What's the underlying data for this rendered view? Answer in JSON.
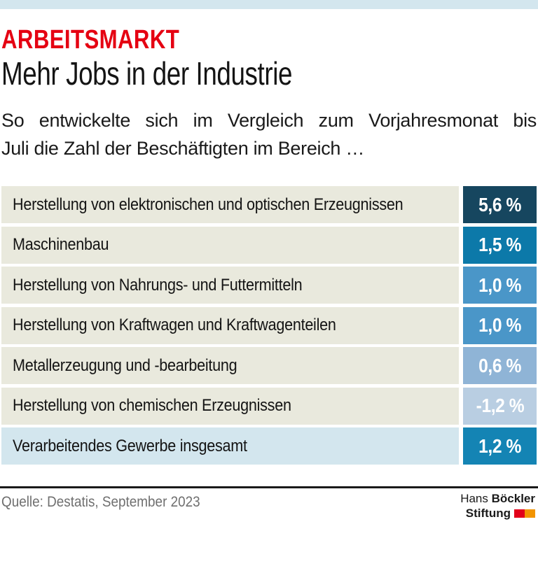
{
  "header": {
    "kicker": "ARBEITSMARKT",
    "kicker_color": "#e50012",
    "title": "Mehr Jobs in der Industrie",
    "subtitle_line1": "So entwickelte sich im Vergleich zum Vorjahresmonat bis",
    "subtitle_line2": "Juli die Zahl der Beschäftigten im Bereich …",
    "topbar_color": "#d3e6ee"
  },
  "chart_data": {
    "type": "bar",
    "orientation": "horizontal",
    "title": "Mehr Jobs in der Industrie",
    "subtitle": "So entwickelte sich im Vergleich zum Vorjahresmonat bis Juli die Zahl der Beschäftigten im Bereich …",
    "unit": "%",
    "categories": [
      "Herstellung von elektronischen und optischen Erzeugnissen",
      "Maschinenbau",
      "Herstellung von Nahrungs- und Futtermitteln",
      "Herstellung von Kraftwagen und Kraftwagenteilen",
      "Metallerzeugung und -bearbeitung",
      "Herstellung von chemischen Erzeugnissen",
      "Verarbeitendes Gewerbe insgesamt"
    ],
    "values": [
      5.6,
      1.5,
      1.0,
      1.0,
      0.6,
      -1.2,
      1.2
    ],
    "value_labels": [
      "5,6 %",
      "1,5 %",
      "1,0 %",
      "1,0 %",
      "0,6 %",
      "-1,2 %",
      "1,2 %"
    ],
    "bar_colors": [
      "#16465f",
      "#0c79a9",
      "#4a96c8",
      "#4a96c8",
      "#8fb4d6",
      "#b9cee2",
      "#1484b4"
    ],
    "row_backgrounds": [
      "#e9e9dd",
      "#e9e9dd",
      "#e9e9dd",
      "#e9e9dd",
      "#e9e9dd",
      "#e9e9dd",
      "#d3e6ee"
    ],
    "legend": "none",
    "grid": false
  },
  "footer": {
    "source": "Quelle: Destatis, September 2023",
    "separator_color": "#1a1a1a",
    "logo": {
      "line1_regular": "Hans ",
      "line1_bold": "Böckler",
      "line2_bold": "Stiftung",
      "mark_red": "#e2001a",
      "mark_orange": "#f29400"
    }
  }
}
